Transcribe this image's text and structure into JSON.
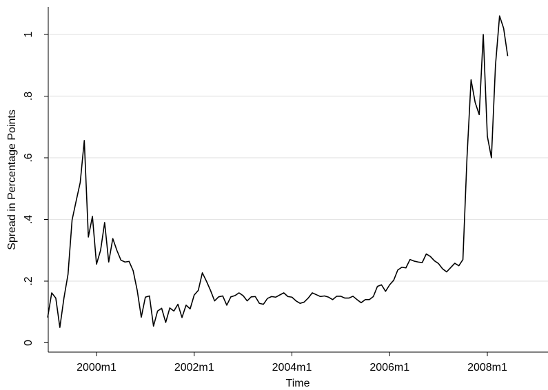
{
  "chart_data": {
    "type": "line",
    "title": "",
    "xlabel": "Time",
    "ylabel": "Spread in Percentage Points",
    "x_ticks": [
      "2000m1",
      "2002m1",
      "2004m1",
      "2006m1",
      "2008m1"
    ],
    "y_ticks": [
      "0",
      ".2",
      ".4",
      ".6",
      ".8",
      "1"
    ],
    "xlim": [
      "1998m12",
      "2008m7"
    ],
    "ylim": [
      -0.03,
      1.1
    ],
    "grid": "horizontal",
    "legend": "none",
    "line_color": "#000000",
    "grid_color": "#e5e5e5",
    "series": [
      {
        "x": [
          "1999m1",
          "1999m2",
          "1999m3",
          "1999m4",
          "1999m5",
          "1999m6",
          "1999m7",
          "1999m8",
          "1999m9",
          "1999m10",
          "1999m11",
          "1999m12",
          "2000m1",
          "2000m2",
          "2000m3",
          "2000m4",
          "2000m5",
          "2000m6",
          "2000m7",
          "2000m8",
          "2000m9",
          "2000m10",
          "2000m11",
          "2000m12",
          "2001m1",
          "2001m2",
          "2001m3",
          "2001m4",
          "2001m5",
          "2001m6",
          "2001m7",
          "2001m8",
          "2001m9",
          "2001m10",
          "2001m11",
          "2001m12",
          "2002m1",
          "2002m2",
          "2002m3",
          "2002m4",
          "2002m5",
          "2002m6",
          "2002m7",
          "2002m8",
          "2002m9",
          "2002m10",
          "2002m11",
          "2002m12",
          "2003m1",
          "2003m2",
          "2003m3",
          "2003m4",
          "2003m5",
          "2003m6",
          "2003m7",
          "2003m8",
          "2003m9",
          "2003m10",
          "2003m11",
          "2003m12",
          "2004m1",
          "2004m2",
          "2004m3",
          "2004m4",
          "2004m5",
          "2004m6",
          "2004m7",
          "2004m8",
          "2004m9",
          "2004m10",
          "2004m11",
          "2004m12",
          "2005m1",
          "2005m2",
          "2005m3",
          "2005m4",
          "2005m5",
          "2005m6",
          "2005m7",
          "2005m8",
          "2005m9",
          "2005m10",
          "2005m11",
          "2005m12",
          "2006m1",
          "2006m2",
          "2006m3",
          "2006m4",
          "2006m5",
          "2006m6",
          "2006m7",
          "2006m8",
          "2006m9",
          "2006m10",
          "2006m11",
          "2006m12",
          "2007m1",
          "2007m2",
          "2007m3",
          "2007m4",
          "2007m5",
          "2007m6",
          "2007m7",
          "2007m8",
          "2007m9",
          "2007m10",
          "2007m11",
          "2007m12",
          "2008m1",
          "2008m2",
          "2008m3",
          "2008m4",
          "2008m5",
          "2008m6"
        ],
        "values": [
          0.082,
          0.162,
          0.145,
          0.05,
          0.145,
          0.222,
          0.398,
          0.46,
          0.52,
          0.656,
          0.343,
          0.41,
          0.255,
          0.3,
          0.39,
          0.262,
          0.338,
          0.3,
          0.268,
          0.262,
          0.264,
          0.234,
          0.17,
          0.083,
          0.148,
          0.152,
          0.054,
          0.103,
          0.112,
          0.066,
          0.113,
          0.103,
          0.125,
          0.082,
          0.122,
          0.11,
          0.155,
          0.17,
          0.227,
          0.2,
          0.17,
          0.136,
          0.149,
          0.152,
          0.122,
          0.149,
          0.153,
          0.162,
          0.153,
          0.136,
          0.149,
          0.15,
          0.128,
          0.125,
          0.144,
          0.15,
          0.148,
          0.155,
          0.162,
          0.15,
          0.148,
          0.136,
          0.128,
          0.132,
          0.145,
          0.162,
          0.156,
          0.15,
          0.152,
          0.148,
          0.14,
          0.151,
          0.151,
          0.145,
          0.145,
          0.151,
          0.14,
          0.13,
          0.14,
          0.14,
          0.15,
          0.183,
          0.188,
          0.167,
          0.188,
          0.203,
          0.236,
          0.245,
          0.243,
          0.27,
          0.265,
          0.262,
          0.26,
          0.288,
          0.28,
          0.266,
          0.257,
          0.24,
          0.23,
          0.244,
          0.258,
          0.25,
          0.27,
          0.6,
          0.853,
          0.78,
          0.74,
          1.0,
          0.67,
          0.6,
          0.9,
          1.06,
          1.02,
          0.93
        ]
      }
    ]
  }
}
